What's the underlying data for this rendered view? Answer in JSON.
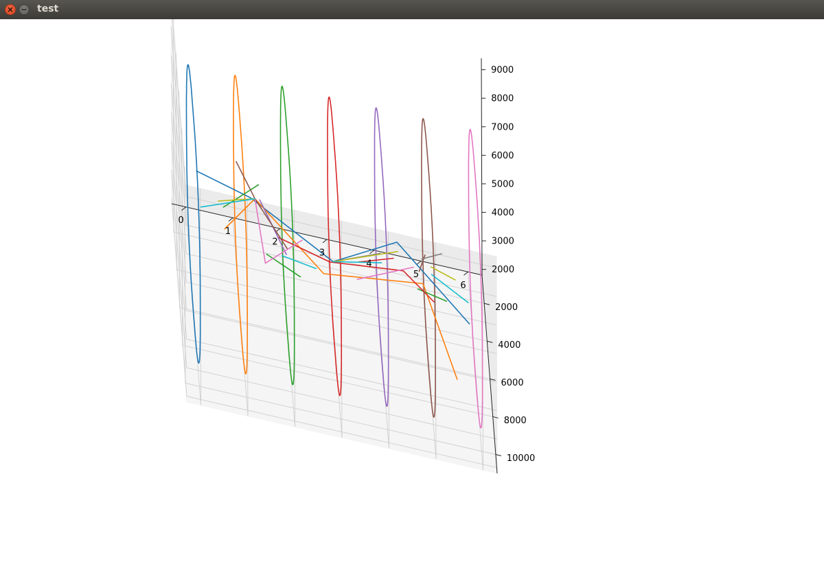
{
  "window": {
    "title": "test"
  },
  "icons": {
    "close": "close-icon",
    "minimize": "minimize-icon"
  },
  "chart_data": {
    "type": "line3d",
    "title": "",
    "xlabel": "",
    "ylabel": "",
    "zlabel": "",
    "xlim": [
      -0.3,
      6.3
    ],
    "ylim": [
      500,
      11000
    ],
    "zlim": [
      1800,
      9400
    ],
    "xticks": [
      "0",
      "1",
      "2",
      "3",
      "4",
      "5",
      "6"
    ],
    "yticks": [
      "2000",
      "4000",
      "6000",
      "8000",
      "10000"
    ],
    "zticks": [
      "2000",
      "3000",
      "4000",
      "5000",
      "6000",
      "7000",
      "8000",
      "9000"
    ],
    "grid": true,
    "pane_color": "#f2f2f2",
    "rings": [
      {
        "x": 0,
        "y_center": 6000,
        "y_radius": 4800,
        "z_center": 5200,
        "z_radius": 3600,
        "color": "#1f77b4"
      },
      {
        "x": 1,
        "y_center": 6000,
        "y_radius": 4800,
        "z_center": 5200,
        "z_radius": 3600,
        "color": "#ff7f0e"
      },
      {
        "x": 2,
        "y_center": 6000,
        "y_radius": 4800,
        "z_center": 5200,
        "z_radius": 3600,
        "color": "#2ca02c"
      },
      {
        "x": 3,
        "y_center": 6000,
        "y_radius": 4800,
        "z_center": 5200,
        "z_radius": 3600,
        "color": "#d62728"
      },
      {
        "x": 4,
        "y_center": 6000,
        "y_radius": 4800,
        "z_center": 5200,
        "z_radius": 3600,
        "color": "#9467bd"
      },
      {
        "x": 5,
        "y_center": 6000,
        "y_radius": 4800,
        "z_center": 5200,
        "z_radius": 3600,
        "color": "#8c564b"
      },
      {
        "x": 6,
        "y_center": 6000,
        "y_radius": 4800,
        "z_center": 5200,
        "z_radius": 3600,
        "color": "#e377c2"
      }
    ],
    "segments": [
      {
        "color": "#1f77b4",
        "points": [
          [
            0.2,
            1500,
            3800
          ],
          [
            1.1,
            9800,
            8700
          ],
          [
            3.0,
            5000,
            4000
          ],
          [
            4.3,
            7000,
            6500
          ],
          [
            5.8,
            8200,
            5000
          ]
        ]
      },
      {
        "color": "#ff7f0e",
        "points": [
          [
            0.8,
            1500,
            2000
          ],
          [
            1.2,
            9800,
            8700
          ],
          [
            2.8,
            5000,
            3500
          ],
          [
            5.0,
            2000,
            2000
          ],
          [
            5.5,
            9500,
            3800
          ]
        ]
      },
      {
        "color": "#2ca02c",
        "points": [
          [
            0.5,
            10800,
            8800
          ],
          [
            1.3,
            9000,
            8700
          ]
        ]
      },
      {
        "color": "#2ca02c",
        "points": [
          [
            1.6,
            4500,
            3400
          ],
          [
            2.3,
            5000,
            3200
          ]
        ]
      },
      {
        "color": "#2ca02c",
        "points": [
          [
            4.7,
            8500,
            6000
          ],
          [
            5.3,
            8800,
            6000
          ]
        ]
      },
      {
        "color": "#d62728",
        "points": [
          [
            1.9,
            3000,
            3100
          ],
          [
            3.0,
            2600,
            2400
          ],
          [
            4.6,
            1400,
            1900
          ],
          [
            5.2,
            3000,
            2100
          ]
        ]
      },
      {
        "color": "#d62728",
        "points": [
          [
            3.5,
            5500,
            4500
          ],
          [
            4.4,
            1000,
            2000
          ]
        ]
      },
      {
        "color": "#9467bd",
        "points": [
          [
            1.3,
            9800,
            8700
          ],
          [
            2.0,
            5200,
            4000
          ]
        ]
      },
      {
        "color": "#8c564b",
        "points": [
          [
            0.9,
            6500,
            7700
          ],
          [
            1.2,
            9800,
            8700
          ],
          [
            1.9,
            9500,
            7000
          ]
        ]
      },
      {
        "color": "#8c564b",
        "points": [
          [
            4.8,
            6000,
            5000
          ],
          [
            5.0,
            3500,
            4000
          ]
        ]
      },
      {
        "color": "#e377c2",
        "points": [
          [
            1.2,
            9800,
            8700
          ],
          [
            1.5,
            7000,
            4700
          ],
          [
            2.4,
            3000,
            3200
          ]
        ]
      },
      {
        "color": "#e377c2",
        "points": [
          [
            3.5,
            5500,
            3900
          ],
          [
            4.8,
            2000,
            2500
          ]
        ]
      },
      {
        "color": "#7f7f7f",
        "points": [
          [
            3.0,
            5000,
            4000
          ],
          [
            4.0,
            5200,
            4800
          ]
        ]
      },
      {
        "color": "#7f7f7f",
        "points": [
          [
            5.0,
            1000,
            2200
          ],
          [
            5.4,
            2000,
            3200
          ]
        ]
      },
      {
        "color": "#bcbd22",
        "points": [
          [
            0.5,
            7000,
            6500
          ],
          [
            1.2,
            9800,
            8700
          ]
        ]
      },
      {
        "color": "#bcbd22",
        "points": [
          [
            3.0,
            5000,
            4000
          ],
          [
            4.3,
            7500,
            6500
          ]
        ]
      },
      {
        "color": "#bcbd22",
        "points": [
          [
            5.2,
            1000,
            2000
          ],
          [
            5.7,
            1400,
            2000
          ]
        ]
      },
      {
        "color": "#17becf",
        "points": [
          [
            0.1,
            8000,
            6800
          ],
          [
            1.2,
            9800,
            8700
          ]
        ]
      },
      {
        "color": "#17becf",
        "points": [
          [
            1.8,
            9000,
            6400
          ],
          [
            2.6,
            6200,
            4400
          ]
        ]
      },
      {
        "color": "#17becf",
        "points": [
          [
            3.0,
            5000,
            4000
          ],
          [
            4.0,
            6000,
            5000
          ]
        ]
      },
      {
        "color": "#17becf",
        "points": [
          [
            5.2,
            1400,
            2000
          ],
          [
            5.9,
            4000,
            3000
          ]
        ]
      }
    ]
  }
}
